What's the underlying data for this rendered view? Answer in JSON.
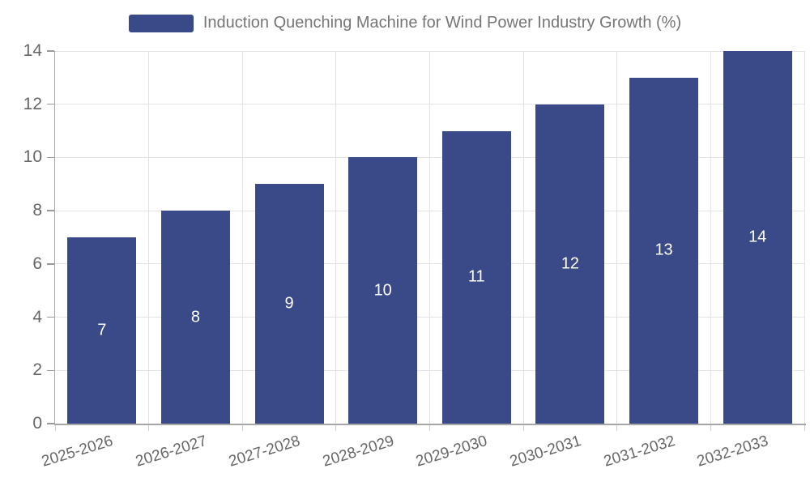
{
  "chart_data": {
    "type": "bar",
    "title": "Induction Quenching Machine for Wind Power Industry Growth (%)",
    "legend": {
      "position": "top",
      "entries": [
        "Induction Quenching Machine for Wind Power Industry Growth (%)"
      ]
    },
    "categories": [
      "2025-2026",
      "2026-2027",
      "2027-2028",
      "2028-2029",
      "2029-2030",
      "2030-2031",
      "2031-2032",
      "2032-2033"
    ],
    "values": [
      7,
      8,
      9,
      10,
      11,
      12,
      13,
      14
    ],
    "xlabel": "",
    "ylabel": "",
    "ylim": [
      0,
      14
    ],
    "ytick_step": 2,
    "yticks": [
      0,
      2,
      4,
      6,
      8,
      10,
      12,
      14
    ],
    "grid": true,
    "value_labels": "inside-center",
    "xtick_rotation_deg": -17,
    "colors": {
      "bar": "#3A4A88",
      "grid": "#e3e3e3",
      "axis": "#a6a6a6",
      "tick": "#999999",
      "boundary_tick": "#cccccc",
      "axis_label": "#666666",
      "value_label": "#ffffff",
      "legend_text": "#757575"
    }
  }
}
